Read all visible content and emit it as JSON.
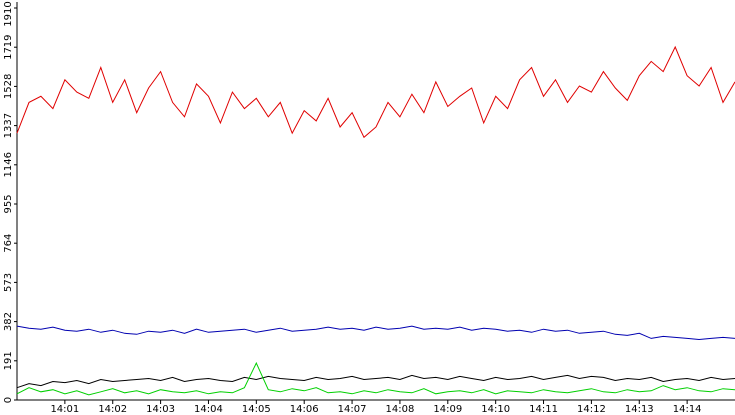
{
  "chart_data": {
    "type": "line",
    "x": [
      0,
      0.25,
      0.5,
      0.75,
      1,
      1.25,
      1.5,
      1.75,
      2,
      2.25,
      2.5,
      2.75,
      3,
      3.25,
      3.5,
      3.75,
      4,
      4.25,
      4.5,
      4.75,
      5,
      5.25,
      5.5,
      5.75,
      6,
      6.25,
      6.5,
      6.75,
      7,
      7.25,
      7.5,
      7.75,
      8,
      8.25,
      8.5,
      8.75,
      9,
      9.25,
      9.5,
      9.75,
      10,
      10.25,
      10.5,
      10.75,
      11,
      11.25,
      11.5,
      11.75,
      12,
      12.25,
      12.5,
      12.75,
      13,
      13.25,
      13.5,
      13.75,
      14,
      14.25,
      14.5,
      14.75,
      15
    ],
    "series": [
      {
        "color": "#e00000",
        "values": [
          1300,
          1450,
          1480,
          1420,
          1560,
          1500,
          1470,
          1620,
          1450,
          1560,
          1400,
          1520,
          1600,
          1450,
          1380,
          1540,
          1480,
          1350,
          1500,
          1420,
          1470,
          1380,
          1450,
          1300,
          1410,
          1360,
          1470,
          1330,
          1400,
          1280,
          1330,
          1450,
          1380,
          1490,
          1400,
          1550,
          1430,
          1480,
          1520,
          1350,
          1480,
          1420,
          1560,
          1620,
          1480,
          1560,
          1450,
          1530,
          1500,
          1600,
          1520,
          1460,
          1580,
          1650,
          1600,
          1720,
          1580,
          1530,
          1620,
          1450,
          1550
        ]
      },
      {
        "color": "#0000b0",
        "values": [
          360,
          350,
          345,
          355,
          340,
          335,
          345,
          330,
          340,
          325,
          320,
          335,
          330,
          340,
          325,
          345,
          330,
          335,
          340,
          345,
          330,
          340,
          350,
          335,
          340,
          345,
          355,
          345,
          350,
          340,
          355,
          345,
          350,
          360,
          345,
          350,
          345,
          355,
          340,
          350,
          345,
          335,
          340,
          330,
          345,
          335,
          340,
          325,
          330,
          335,
          320,
          315,
          325,
          300,
          310,
          305,
          300,
          295,
          300,
          305,
          300
        ]
      },
      {
        "color": "#000000",
        "values": [
          60,
          80,
          70,
          90,
          85,
          95,
          80,
          100,
          90,
          95,
          100,
          105,
          95,
          110,
          90,
          100,
          105,
          95,
          90,
          110,
          100,
          115,
          105,
          100,
          95,
          110,
          100,
          105,
          115,
          100,
          105,
          110,
          100,
          120,
          105,
          110,
          100,
          115,
          105,
          95,
          110,
          100,
          105,
          115,
          100,
          110,
          120,
          105,
          115,
          110,
          95,
          105,
          100,
          110,
          90,
          100,
          105,
          95,
          110,
          100,
          105
        ]
      },
      {
        "color": "#00d000",
        "values": [
          30,
          60,
          40,
          50,
          30,
          45,
          25,
          40,
          55,
          35,
          45,
          30,
          50,
          40,
          35,
          45,
          30,
          40,
          35,
          60,
          180,
          50,
          40,
          55,
          45,
          60,
          35,
          40,
          30,
          45,
          35,
          50,
          40,
          35,
          55,
          30,
          40,
          45,
          35,
          50,
          30,
          45,
          40,
          35,
          50,
          40,
          35,
          45,
          55,
          40,
          35,
          50,
          40,
          45,
          70,
          50,
          60,
          45,
          40,
          55,
          50
        ]
      }
    ],
    "xlim": [
      0,
      15
    ],
    "xticks": [
      {
        "value": 1,
        "label": "14:01"
      },
      {
        "value": 2,
        "label": "14:02"
      },
      {
        "value": 3,
        "label": "14:03"
      },
      {
        "value": 4,
        "label": "14:04"
      },
      {
        "value": 5,
        "label": "14:05"
      },
      {
        "value": 6,
        "label": "14:06"
      },
      {
        "value": 7,
        "label": "14:07"
      },
      {
        "value": 8,
        "label": "14:08"
      },
      {
        "value": 9,
        "label": "14:09"
      },
      {
        "value": 10,
        "label": "14:10"
      },
      {
        "value": 11,
        "label": "14:11"
      },
      {
        "value": 12,
        "label": "14:12"
      },
      {
        "value": 13,
        "label": "14:13"
      },
      {
        "value": 14,
        "label": "14:14"
      }
    ],
    "ylim": [
      0,
      1910
    ],
    "yticks": [
      0,
      191,
      382,
      573,
      764,
      955,
      1146,
      1337,
      1528,
      1719,
      1910
    ]
  }
}
